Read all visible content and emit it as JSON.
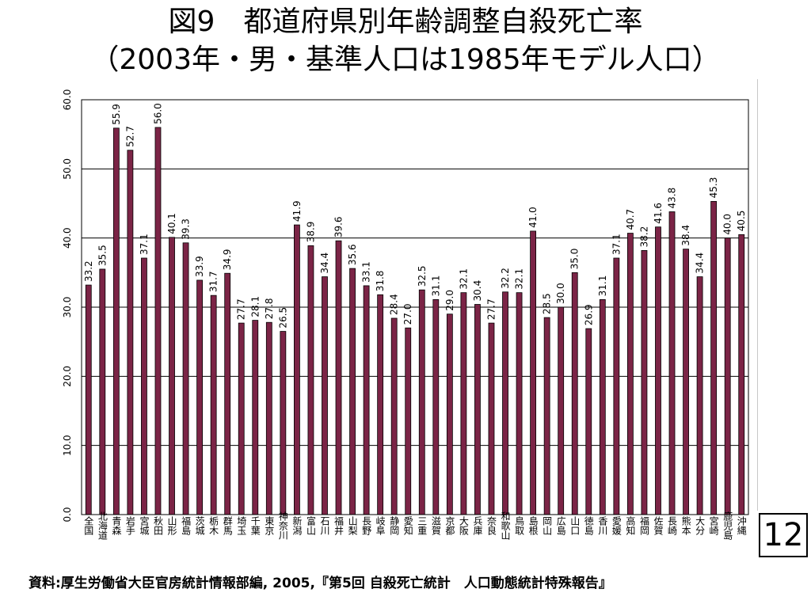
{
  "slide": {
    "title_line1": "図9　都道府県別年齢調整自殺死亡率",
    "title_line2": "（2003年・男・基準人口は1985年モデル人口）",
    "page_number": "12",
    "source": "資料:厚生労働省大臣官房統計情報部編, 2005,『第5回 自殺死亡統計　人口動態統計特殊報告』"
  },
  "chart_data": {
    "type": "bar",
    "bar_color": "#7b2446",
    "grid": true,
    "ylim": [
      0,
      60
    ],
    "yticks": [
      "0.0",
      "10.0",
      "20.0",
      "30.0",
      "40.0",
      "50.0",
      "60.0"
    ],
    "categories": [
      "全国",
      "北海道",
      "青森",
      "岩手",
      "宮城",
      "秋田",
      "山形",
      "福島",
      "茨城",
      "栃木",
      "群馬",
      "埼玉",
      "千葉",
      "東京",
      "神奈川",
      "新潟",
      "富山",
      "石川",
      "福井",
      "山梨",
      "長野",
      "岐阜",
      "静岡",
      "愛知",
      "三重",
      "滋賀",
      "京都",
      "大阪",
      "兵庫",
      "奈良",
      "和歌山",
      "鳥取",
      "島根",
      "岡山",
      "広島",
      "山口",
      "徳島",
      "香川",
      "愛媛",
      "高知",
      "福岡",
      "佐賀",
      "長崎",
      "熊本",
      "大分",
      "宮崎",
      "鹿児島",
      "沖縄"
    ],
    "values": [
      33.2,
      35.5,
      55.9,
      52.7,
      37.1,
      56.0,
      40.1,
      39.3,
      33.9,
      31.7,
      34.9,
      27.7,
      28.1,
      27.8,
      26.5,
      41.9,
      38.9,
      34.4,
      39.6,
      35.6,
      33.1,
      31.8,
      28.4,
      27.0,
      32.5,
      31.1,
      29.0,
      32.1,
      30.4,
      27.7,
      32.2,
      32.1,
      41.0,
      28.5,
      30.0,
      35.0,
      26.9,
      31.1,
      37.1,
      40.7,
      38.2,
      41.6,
      43.8,
      38.4,
      34.4,
      45.3,
      40.0,
      40.5
    ],
    "value_labels": [
      "33.2",
      "35.5",
      "55.9",
      "52.7",
      "37.1",
      "56.0",
      "40.1",
      "39.3",
      "33.9",
      "31.7",
      "34.9",
      "27.7",
      "28.1",
      "27.8",
      "26.5",
      "41.9",
      "38.9",
      "34.4",
      "39.6",
      "35.6",
      "33.1",
      "31.8",
      "28.4",
      "27.0",
      "32.5",
      "31.1",
      "29.0",
      "32.1",
      "30.4",
      "27.7",
      "32.2",
      "32.1",
      "41.0",
      "28.5",
      "30.0",
      "35.0",
      "26.9",
      "31.1",
      "37.1",
      "40.7",
      "38.2",
      "41.6",
      "43.8",
      "38.4",
      "34.4",
      "45.3",
      "40.0",
      "40.5"
    ]
  }
}
